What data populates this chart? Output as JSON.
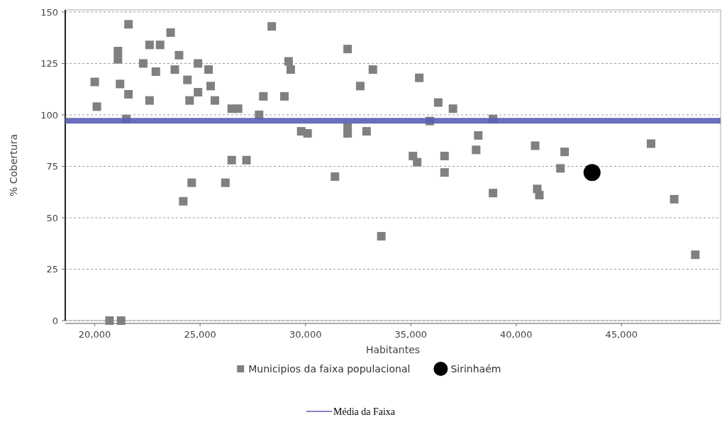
{
  "chart_data": {
    "type": "scatter",
    "xlabel": "Habitantes",
    "ylabel": "% Cobertura",
    "xlim": [
      18600,
      49700
    ],
    "ylim": [
      0,
      151
    ],
    "xticks": [
      {
        "value": 20000,
        "label": "20,000"
      },
      {
        "value": 25000,
        "label": "25,000"
      },
      {
        "value": 30000,
        "label": "30,000"
      },
      {
        "value": 35000,
        "label": "35,000"
      },
      {
        "value": 40000,
        "label": "40,000"
      },
      {
        "value": 45000,
        "label": "45,000"
      }
    ],
    "yticks": [
      0,
      25,
      50,
      75,
      100,
      125,
      150
    ],
    "grid": "y",
    "legend": "bottom",
    "series": [
      {
        "name": "Municipios da faixa populacional",
        "color": "#808080",
        "marker": "square",
        "x": [
          20000,
          20100,
          20700,
          21100,
          21100,
          21200,
          21250,
          21500,
          21600,
          21600,
          22300,
          22600,
          22600,
          22900,
          23100,
          23600,
          23800,
          24000,
          24200,
          24400,
          24500,
          24600,
          24900,
          24900,
          25400,
          25500,
          25700,
          26200,
          26500,
          26500,
          26800,
          27200,
          27800,
          28000,
          28400,
          29000,
          29200,
          29300,
          29800,
          30100,
          31400,
          32000,
          32000,
          32000,
          32600,
          32900,
          33200,
          33600,
          35100,
          35300,
          35400,
          35900,
          36300,
          36600,
          36600,
          37000,
          38100,
          38200,
          38900,
          38900,
          40900,
          41000,
          41100,
          42100,
          42300,
          46400,
          47500,
          48500
        ],
        "values": [
          116,
          104,
          0,
          131,
          127,
          115,
          0,
          98,
          144,
          110,
          125,
          107,
          134,
          121,
          134,
          140,
          122,
          129,
          58,
          117,
          107,
          67,
          125,
          111,
          122,
          114,
          107,
          67,
          78,
          103,
          103,
          78,
          100,
          109,
          143,
          109,
          126,
          122,
          92,
          91,
          70,
          91,
          94,
          132,
          114,
          92,
          122,
          41,
          80,
          77,
          118,
          97,
          106,
          80,
          72,
          103,
          83,
          90,
          62,
          98,
          85,
          64,
          61,
          74,
          82,
          86,
          59,
          32
        ]
      },
      {
        "name": "Sirinhaém",
        "color": "#000000",
        "marker": "circle",
        "x": [
          43600
        ],
        "values": [
          72
        ]
      }
    ],
    "ref_lines": [
      {
        "axis": "y",
        "value": 97.1,
        "label": "Média da Faixa",
        "color": "#5b5fb5"
      }
    ]
  }
}
